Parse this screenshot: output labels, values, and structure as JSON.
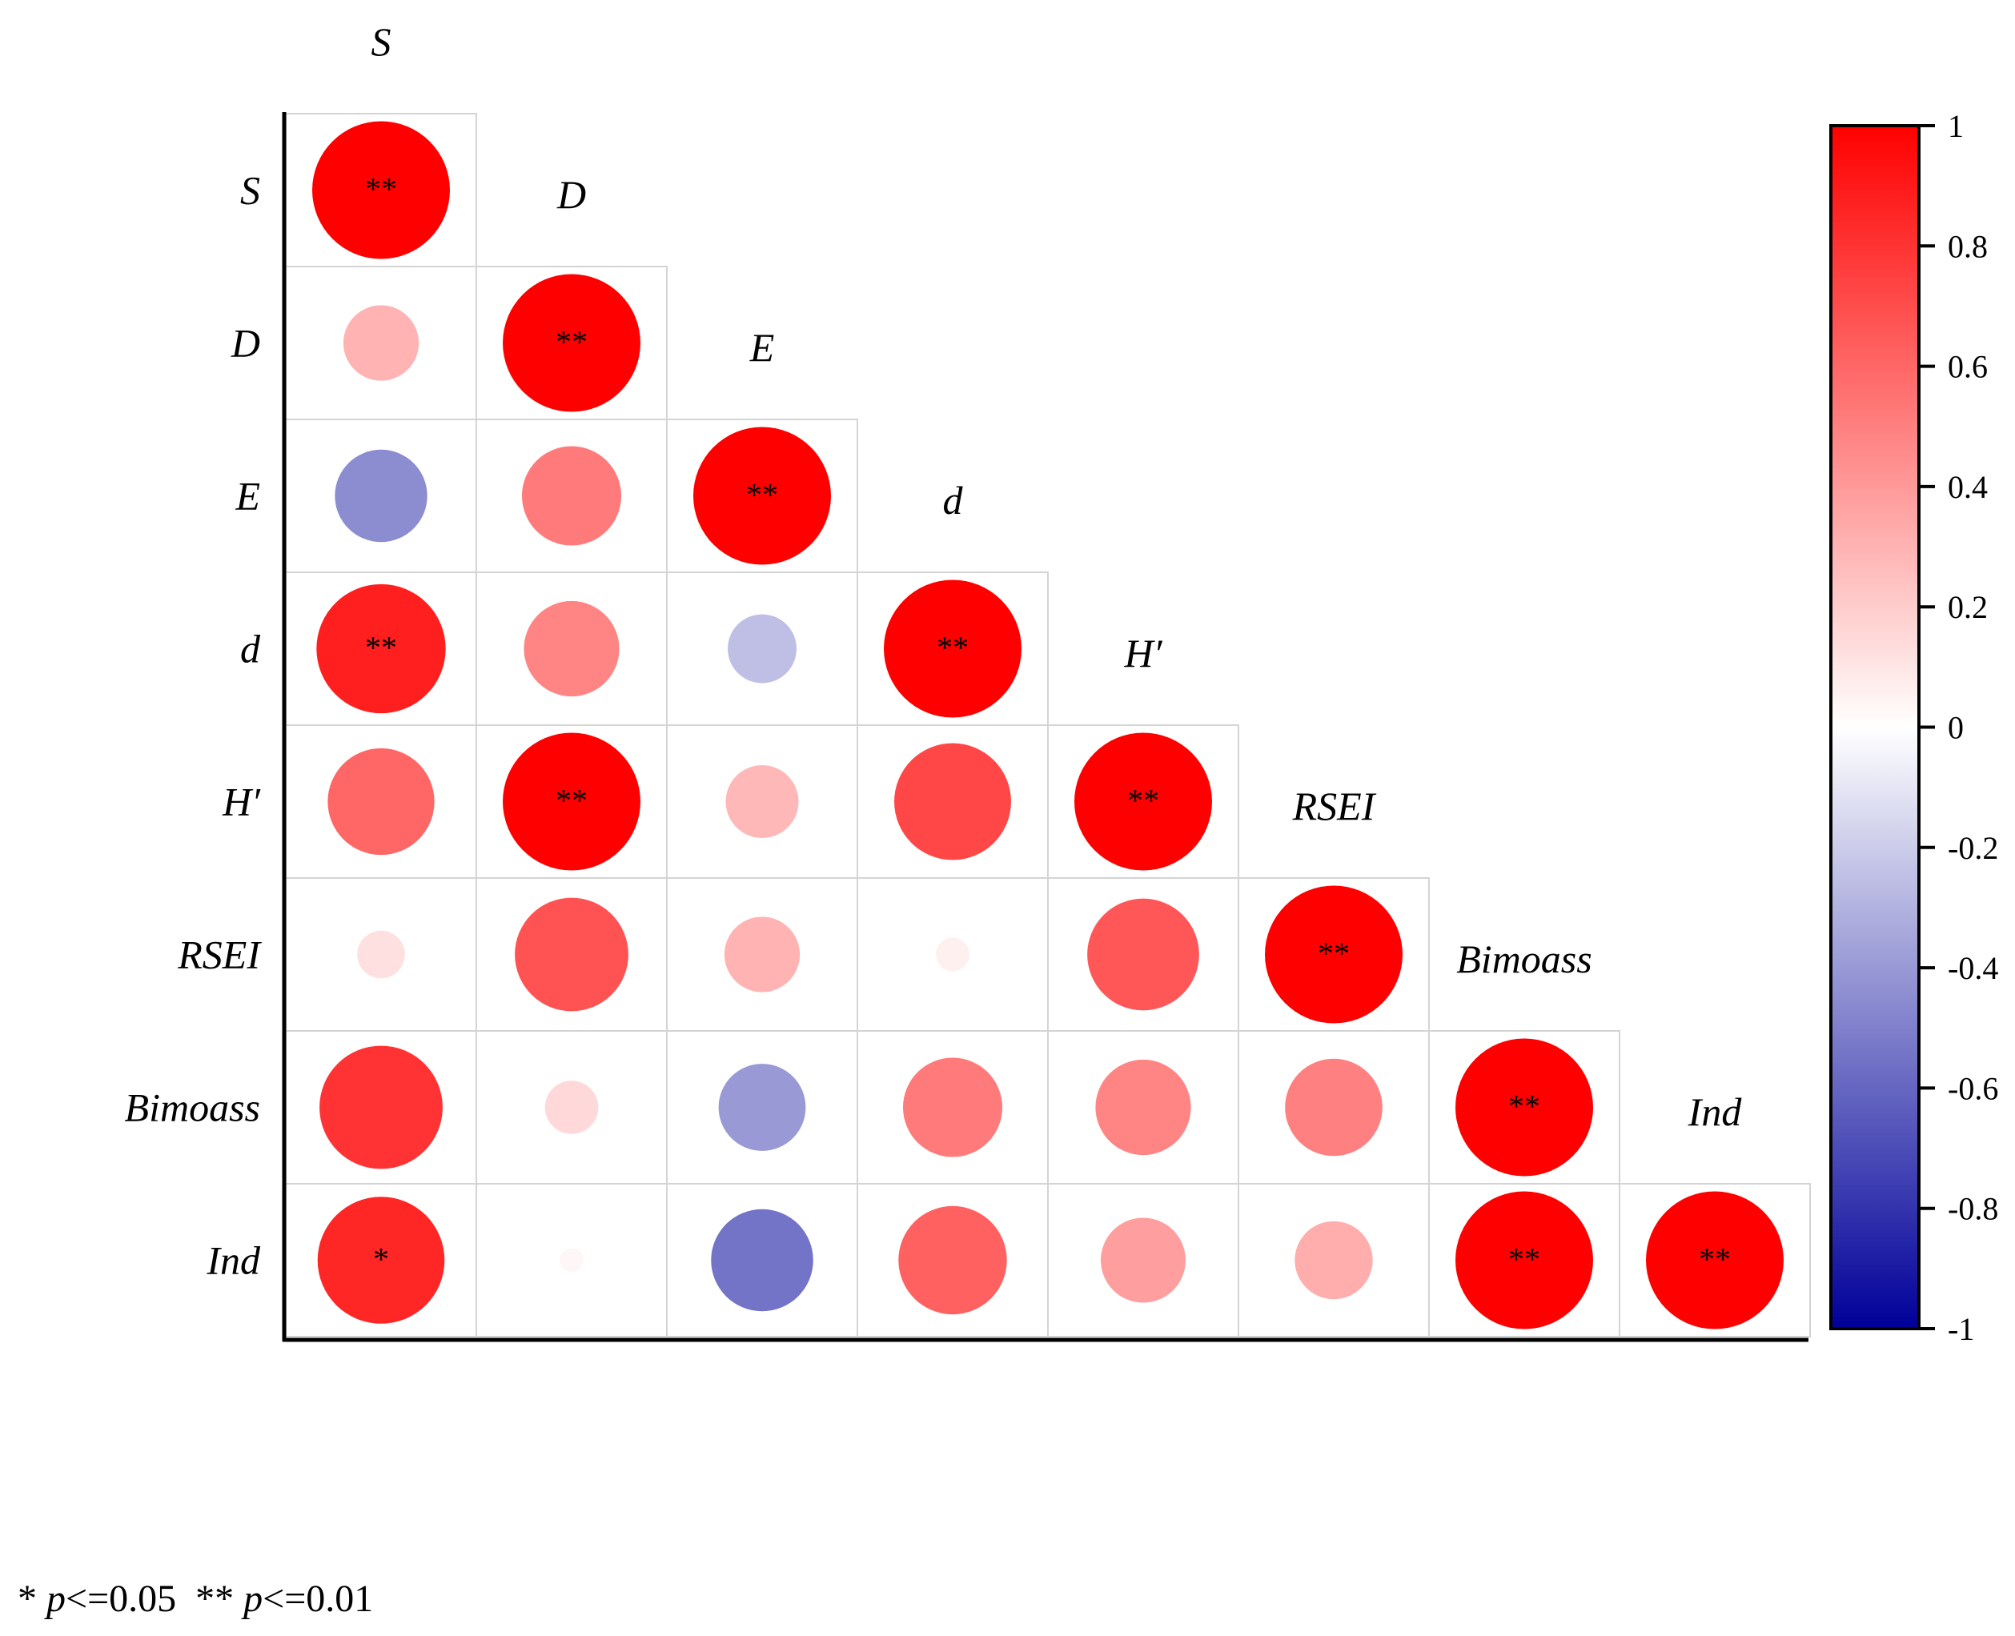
{
  "chart_data": {
    "type": "heatmap",
    "variables": [
      "S",
      "D",
      "E",
      "d",
      "H′",
      "RSEI",
      "Bimoass",
      "Ind"
    ],
    "matrix": [
      [
        1.0,
        null,
        null,
        null,
        null,
        null,
        null,
        null
      ],
      [
        0.3,
        1.0,
        null,
        null,
        null,
        null,
        null,
        null
      ],
      [
        -0.45,
        0.52,
        1.0,
        null,
        null,
        null,
        null,
        null
      ],
      [
        0.88,
        0.48,
        -0.25,
        1.0,
        null,
        null,
        null,
        null
      ],
      [
        0.6,
        1.0,
        0.28,
        0.72,
        1.0,
        null,
        null,
        null
      ],
      [
        0.12,
        0.68,
        0.3,
        0.06,
        0.66,
        1.0,
        null,
        null
      ],
      [
        0.8,
        0.15,
        -0.4,
        0.52,
        0.48,
        0.5,
        1.0,
        null
      ],
      [
        0.85,
        0.03,
        -0.55,
        0.62,
        0.38,
        0.32,
        1.0,
        1.0
      ]
    ],
    "significance": [
      [
        "**",
        "",
        "",
        "",
        "",
        "",
        "",
        ""
      ],
      [
        "",
        "**",
        "",
        "",
        "",
        "",
        "",
        ""
      ],
      [
        "",
        "",
        "**",
        "",
        "",
        "",
        "",
        ""
      ],
      [
        "**",
        "",
        "",
        "**",
        "",
        "",
        "",
        ""
      ],
      [
        "",
        "**",
        "",
        "",
        "**",
        "",
        "",
        ""
      ],
      [
        "",
        "",
        "",
        "",
        "",
        "**",
        "",
        ""
      ],
      [
        "",
        "",
        "",
        "",
        "",
        "",
        "**",
        ""
      ],
      [
        "*",
        "",
        "",
        "",
        "",
        "",
        "**",
        "**"
      ]
    ],
    "colorbar": {
      "range": [
        -1,
        1
      ],
      "ticks": [
        "1",
        "0.8",
        "0.6",
        "0.4",
        "0.2",
        "0",
        "-0.2",
        "-0.4",
        "-0.6",
        "-0.8",
        "-1"
      ],
      "colors": {
        "positive": "#ff0000",
        "zero": "#ffffff",
        "negative": "#000099"
      }
    }
  },
  "footnote": {
    "star1": "* ",
    "p1": "p",
    "cond1": "<=0.05  ** ",
    "p2": "p",
    "cond2": "<=0.01"
  }
}
